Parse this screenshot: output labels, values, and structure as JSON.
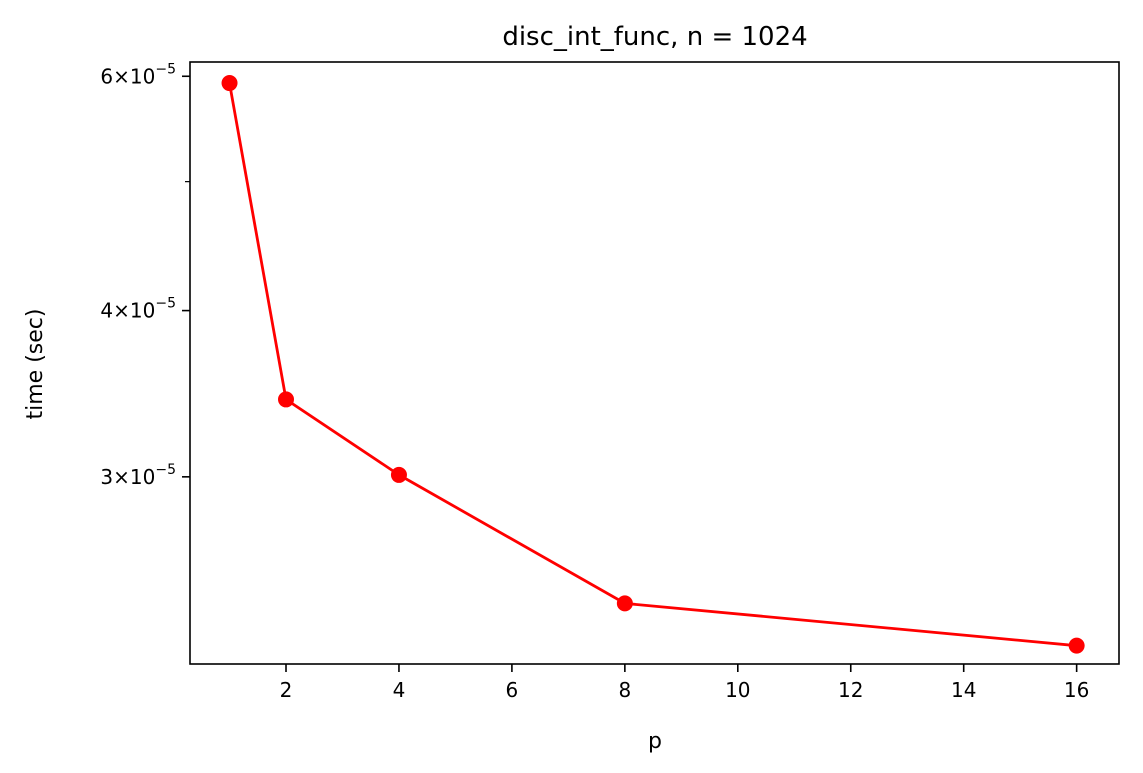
{
  "chart_data": {
    "type": "line",
    "title": "disc_int_func, n = 1024",
    "xlabel": "p",
    "ylabel": "time (sec)",
    "y_scale": "log",
    "xlim": [
      0.3,
      16.75
    ],
    "ylim": [
      2.17e-05,
      6.15e-05
    ],
    "grid": false,
    "x_ticks": [
      {
        "value": 2,
        "label": "2"
      },
      {
        "value": 4,
        "label": "4"
      },
      {
        "value": 6,
        "label": "6"
      },
      {
        "value": 8,
        "label": "8"
      },
      {
        "value": 10,
        "label": "10"
      },
      {
        "value": 12,
        "label": "12"
      },
      {
        "value": 14,
        "label": "14"
      },
      {
        "value": 16,
        "label": "16"
      }
    ],
    "y_major_ticks": [
      {
        "value": 3e-05,
        "mantissa": "3",
        "exponent": "−5"
      },
      {
        "value": 4e-05,
        "mantissa": "4",
        "exponent": "−5"
      },
      {
        "value": 6e-05,
        "mantissa": "6",
        "exponent": "−5"
      }
    ],
    "y_minor_ticks": [
      5e-05
    ],
    "series": [
      {
        "color": "#ff0000",
        "marker": "circle",
        "points": [
          {
            "x": 1,
            "y": 5.93e-05
          },
          {
            "x": 2,
            "y": 3.43e-05
          },
          {
            "x": 4,
            "y": 3.01e-05
          },
          {
            "x": 8,
            "y": 2.41e-05
          },
          {
            "x": 16,
            "y": 2.24e-05
          }
        ]
      }
    ]
  }
}
